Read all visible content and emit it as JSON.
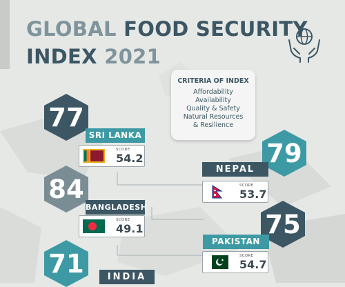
{
  "title": {
    "line1_light": "GLOBAL",
    "line1_dark": "FOOD SECURITY",
    "line2_dark": "INDEX",
    "line2_light": "2021"
  },
  "logo_icon": "hands-holding-globe-icon",
  "criteria": {
    "heading": "CRITERIA OF INDEX",
    "items": [
      "Affordability",
      "Availability",
      "Quality & Safety",
      "Natural Resources",
      "& Resilience"
    ]
  },
  "score_label": "SCORE",
  "countries": [
    {
      "name": "SRI LANKA",
      "rank": "77",
      "score": "54.2"
    },
    {
      "name": "NEPAL",
      "rank": "79",
      "score": "53.7"
    },
    {
      "name": "BANGLADESH",
      "rank": "84",
      "score": "49.1"
    },
    {
      "name": "PAKISTAN",
      "rank": "75",
      "score": "54.7"
    },
    {
      "name": "INDIA",
      "rank": "71"
    }
  ],
  "colors": {
    "dark": "#3c5664",
    "teal": "#3d9aa5",
    "gray": "#7a8d94",
    "background": "#e6e8e6"
  }
}
